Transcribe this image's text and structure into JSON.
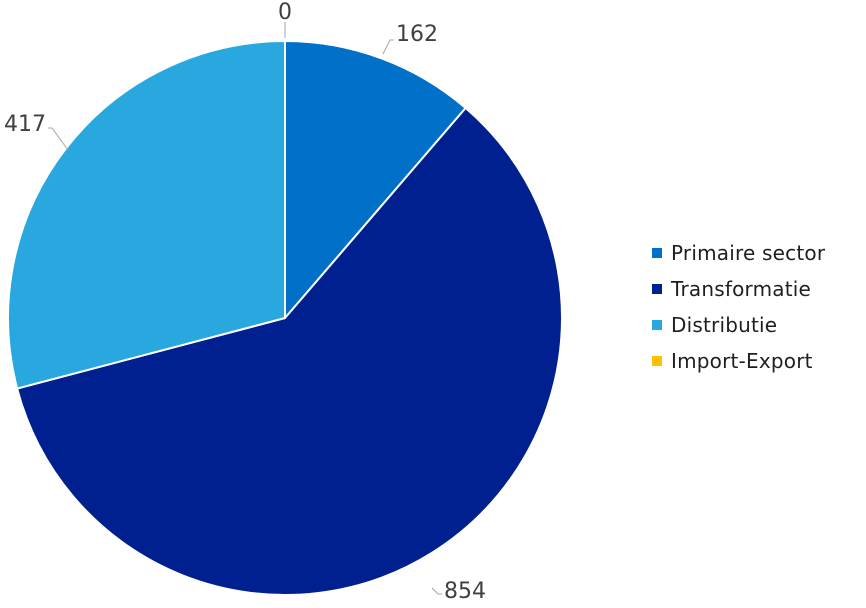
{
  "chart_data": {
    "type": "pie",
    "categories": [
      "Primaire sector",
      "Transformatie",
      "Distributie",
      "Import-Export"
    ],
    "values": [
      162,
      854,
      417,
      0
    ],
    "colors": [
      "#0070c8",
      "#00208f",
      "#29a8e0",
      "#ffc000"
    ],
    "data_labels": [
      "162",
      "854",
      "417",
      "0"
    ],
    "start_angle": "12 o'clock",
    "direction": "clockwise",
    "legend_position": "right"
  }
}
